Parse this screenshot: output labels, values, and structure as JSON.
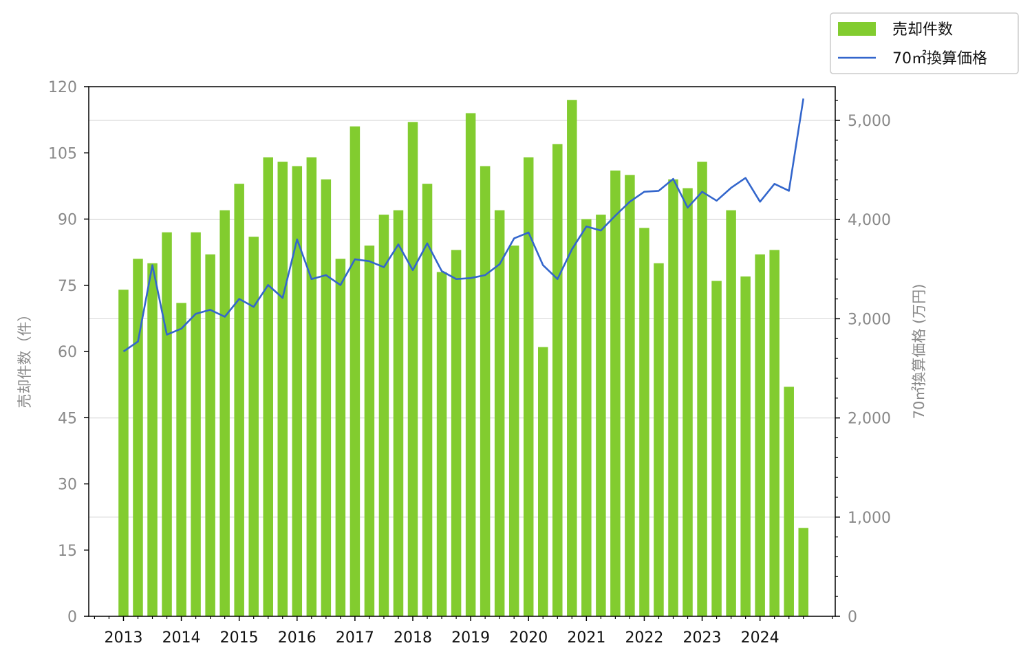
{
  "colors": {
    "bar": "#82cc2f",
    "line": "#3366cc",
    "left_tick": "#888888",
    "right_tick": "#888888",
    "x_tick": "#111111",
    "grid": "#d9d9d9"
  },
  "chart_data": {
    "type": "bar+line",
    "title": "",
    "grid": "horizontal, right axis",
    "legend_position": "top-right, outside plot",
    "series": [
      {
        "name": "売却件数",
        "type": "bar",
        "axis": "left",
        "x": [
          2013.0,
          2013.25,
          2013.5,
          2013.75,
          2014.0,
          2014.25,
          2014.5,
          2014.75,
          2015.0,
          2015.25,
          2015.5,
          2015.75,
          2016.0,
          2016.25,
          2016.5,
          2016.75,
          2017.0,
          2017.25,
          2017.5,
          2017.75,
          2018.0,
          2018.25,
          2018.5,
          2018.75,
          2019.0,
          2019.25,
          2019.5,
          2019.75,
          2020.0,
          2020.25,
          2020.5,
          2020.75,
          2021.0,
          2021.25,
          2021.5,
          2021.75,
          2022.0,
          2022.25,
          2022.5,
          2022.75,
          2023.0,
          2023.25,
          2023.5,
          2023.75,
          2024.0,
          2024.25,
          2024.5,
          2024.75
        ],
        "values": [
          74,
          81,
          80,
          87,
          71,
          87,
          82,
          92,
          98,
          86,
          104,
          103,
          102,
          104,
          99,
          81,
          111,
          84,
          91,
          92,
          112,
          98,
          78,
          83,
          114,
          102,
          92,
          84,
          104,
          61,
          107,
          117,
          90,
          91,
          101,
          100,
          88,
          80,
          99,
          97,
          103,
          76,
          92,
          77,
          82,
          83,
          52,
          20
        ]
      },
      {
        "name": "70㎡換算価格",
        "type": "line",
        "axis": "right",
        "x": [
          2013.0,
          2013.25,
          2013.5,
          2013.75,
          2014.0,
          2014.25,
          2014.5,
          2014.75,
          2015.0,
          2015.25,
          2015.5,
          2015.75,
          2016.0,
          2016.25,
          2016.5,
          2016.75,
          2017.0,
          2017.25,
          2017.5,
          2017.75,
          2018.0,
          2018.25,
          2018.5,
          2018.75,
          2019.0,
          2019.25,
          2019.5,
          2019.75,
          2020.0,
          2020.25,
          2020.5,
          2020.75,
          2021.0,
          2021.25,
          2021.5,
          2021.75,
          2022.0,
          2022.25,
          2022.5,
          2022.75,
          2023.0,
          2023.25,
          2023.5,
          2023.75,
          2024.0,
          2024.25,
          2024.5,
          2024.75
        ],
        "values": [
          2670,
          2770,
          3540,
          2840,
          2900,
          3050,
          3090,
          3020,
          3200,
          3120,
          3340,
          3210,
          3800,
          3400,
          3440,
          3340,
          3600,
          3580,
          3520,
          3750,
          3490,
          3760,
          3480,
          3400,
          3410,
          3440,
          3550,
          3810,
          3870,
          3540,
          3400,
          3700,
          3930,
          3890,
          4040,
          4180,
          4280,
          4290,
          4410,
          4120,
          4280,
          4190,
          4320,
          4420,
          4180,
          4360,
          4290,
          5220
        ]
      }
    ],
    "y_left": {
      "label": "売却件数（件）",
      "range": [
        0,
        120
      ],
      "ticks": [
        "0",
        "15",
        "30",
        "45",
        "60",
        "75",
        "90",
        "105",
        "120"
      ]
    },
    "y_right": {
      "label": "70㎡換算価格 (万円)",
      "range": [
        0,
        5340
      ],
      "ticks": [
        "0",
        "1,000",
        "2,000",
        "3,000",
        "4,000",
        "5,000"
      ],
      "tick_values": [
        0,
        1000,
        2000,
        3000,
        4000,
        5000
      ],
      "minor_step": 200
    },
    "x_axis": {
      "range": [
        2012.4,
        2025.3
      ],
      "ticks": [
        "2013",
        "2014",
        "2015",
        "2016",
        "2017",
        "2018",
        "2019",
        "2020",
        "2021",
        "2022",
        "2023",
        "2024"
      ],
      "tick_values": [
        2013,
        2014,
        2015,
        2016,
        2017,
        2018,
        2019,
        2020,
        2021,
        2022,
        2023,
        2024
      ],
      "minor_step": 0.25
    }
  }
}
